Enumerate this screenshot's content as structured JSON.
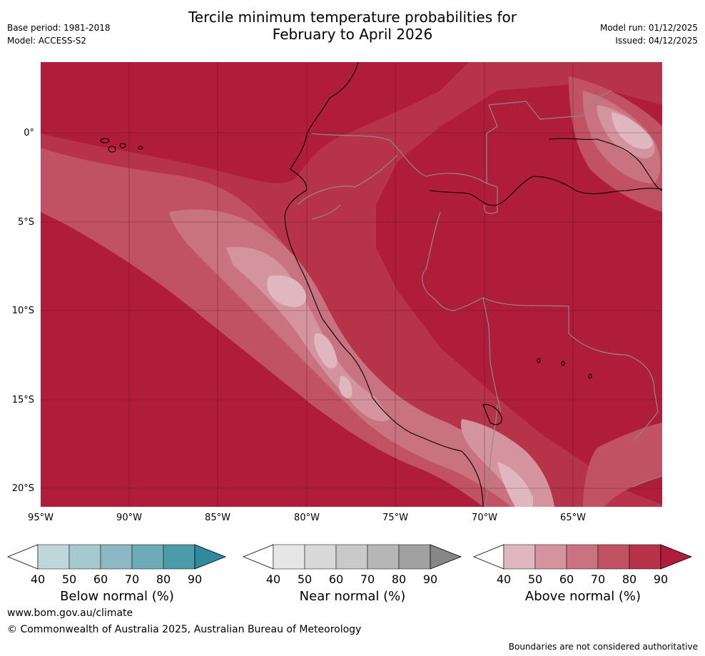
{
  "title": {
    "line1": "Tercile minimum temperature probabilities for",
    "line2": "February to April 2026"
  },
  "meta": {
    "base_period": "Base period: 1981-2018",
    "model": "Model: ACCESS-S2",
    "model_run": "Model run: 01/12/2025",
    "issued": "Issued: 04/12/2025"
  },
  "map": {
    "latitude_labels": [
      "0°",
      "5°S",
      "10°S",
      "15°S",
      "20°S"
    ],
    "longitude_labels": [
      "95°W",
      "90°W",
      "85°W",
      "80°W",
      "75°W",
      "70°W",
      "65°W"
    ],
    "fill_colors": {
      "p40_50": "#e0b7bf",
      "p50_60": "#d4949e",
      "p60_70": "#c97380",
      "p70_80": "#c05264",
      "p80_90": "#b73349",
      "p90": "#b01d3a"
    }
  },
  "colorbars": [
    {
      "title": "Below normal (%)",
      "ticks": [
        "40",
        "50",
        "60",
        "70",
        "80",
        "90"
      ],
      "colors": [
        "#bfd6db",
        "#a6c8cf",
        "#8bb8c3",
        "#6dabb7",
        "#4b9cab",
        "#2f8a9c"
      ]
    },
    {
      "title": "Near normal (%)",
      "ticks": [
        "40",
        "50",
        "60",
        "70",
        "80",
        "90"
      ],
      "colors": [
        "#e6e6e6",
        "#d8d8d8",
        "#c9c9c9",
        "#b6b6b6",
        "#a1a1a1",
        "#878787"
      ]
    },
    {
      "title": "Above normal (%)",
      "ticks": [
        "40",
        "50",
        "60",
        "70",
        "80",
        "90"
      ],
      "colors": [
        "#e0b7bf",
        "#d4949e",
        "#c97380",
        "#c05264",
        "#b73349",
        "#b01d3a"
      ]
    }
  ],
  "footer": {
    "website": "www.bom.gov.au/climate",
    "copyright": "© Commonwealth of Australia 2025, Australian Bureau of Meteorology",
    "disclaimer": "Boundaries are not considered authoritative"
  }
}
